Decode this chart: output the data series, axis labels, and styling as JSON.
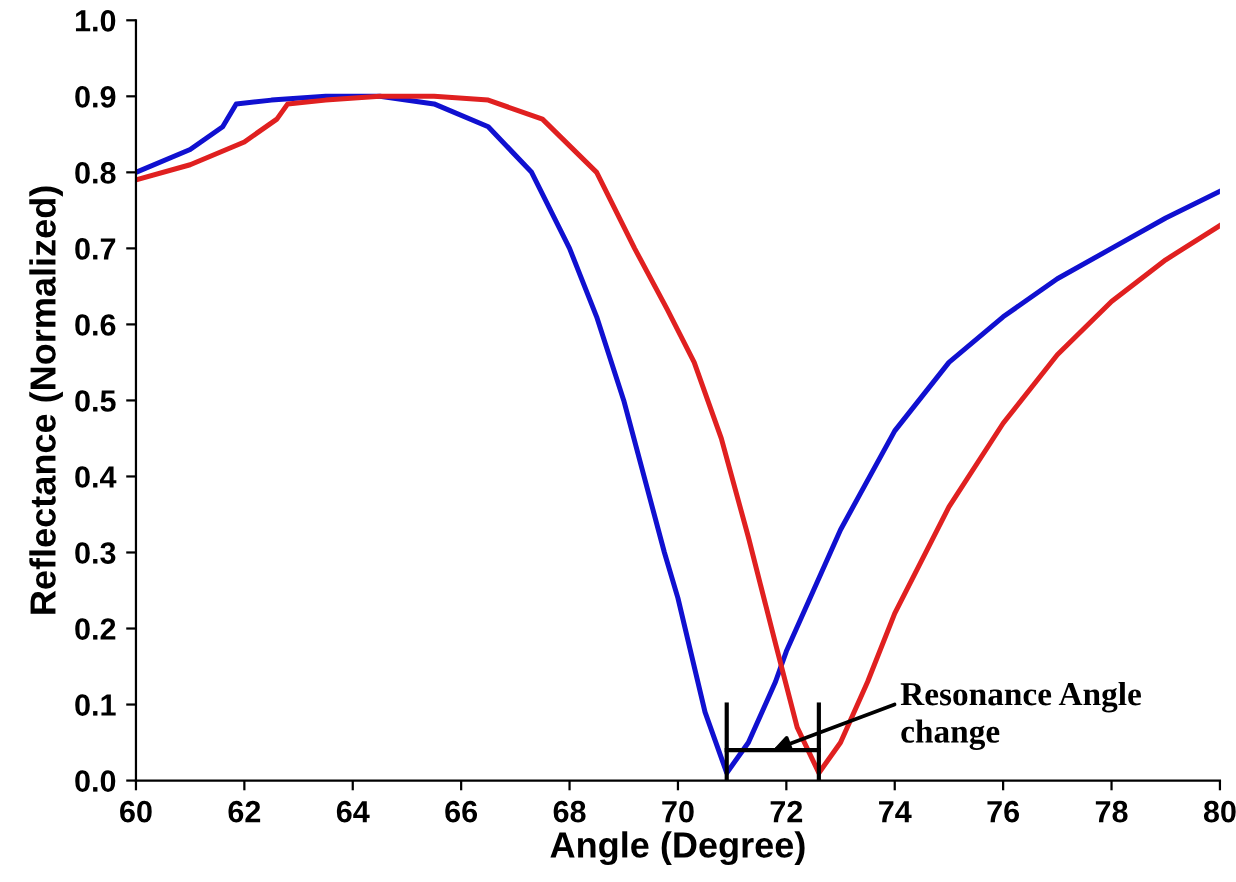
{
  "chart_data": {
    "type": "line",
    "xlabel": "Angle (Degree)",
    "ylabel": "Reflectance (Normalized)",
    "xlim": [
      60,
      80
    ],
    "ylim": [
      0,
      1.0
    ],
    "xticks": [
      60,
      62,
      64,
      66,
      68,
      70,
      72,
      74,
      76,
      78,
      80
    ],
    "yticks": [
      {
        "value": 0,
        "label": "0.0"
      },
      0.1,
      0.2,
      0.3,
      0.4,
      0.5,
      0.6,
      0.7,
      0.8,
      0.9,
      {
        "value": 1.0,
        "label": "1.0"
      }
    ],
    "grid": false,
    "annotations": [
      "Resonance Angle\nchange"
    ],
    "series": [
      {
        "color": "#1010d0",
        "x": [
          60,
          61,
          61.6,
          61.85,
          62.5,
          63.5,
          64.5,
          65.5,
          66.5,
          67.3,
          68,
          68.5,
          69,
          69.75,
          70,
          70.5,
          70.9,
          71.3,
          71.8,
          72,
          72.5,
          73,
          74,
          75,
          76,
          77,
          78,
          79,
          80
        ],
        "values": [
          0.8,
          0.83,
          0.86,
          0.89,
          0.895,
          0.9,
          0.9,
          0.89,
          0.86,
          0.8,
          0.7,
          0.61,
          0.5,
          0.3,
          0.24,
          0.09,
          0.01,
          0.05,
          0.13,
          0.17,
          0.25,
          0.33,
          0.46,
          0.55,
          0.61,
          0.66,
          0.7,
          0.74,
          0.775
        ]
      },
      {
        "color": "#e02020",
        "x": [
          60,
          61,
          62,
          62.6,
          62.8,
          63.5,
          64.5,
          65.5,
          66.5,
          67.5,
          68.5,
          69.2,
          69.8,
          70.3,
          70.8,
          71.3,
          71.8,
          72.2,
          72.6,
          73,
          73.5,
          74,
          75,
          76,
          77,
          78,
          79,
          80
        ],
        "values": [
          0.79,
          0.81,
          0.84,
          0.87,
          0.89,
          0.895,
          0.9,
          0.9,
          0.895,
          0.87,
          0.8,
          0.7,
          0.62,
          0.55,
          0.45,
          0.32,
          0.18,
          0.07,
          0.01,
          0.05,
          0.13,
          0.22,
          0.36,
          0.47,
          0.56,
          0.63,
          0.685,
          0.73
        ]
      }
    ]
  }
}
